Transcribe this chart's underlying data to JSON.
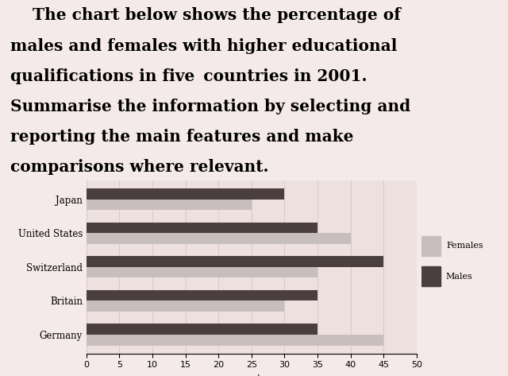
{
  "countries": [
    "Japan",
    "United States",
    "Switzerland",
    "Britain",
    "Germany"
  ],
  "females": [
    25,
    40,
    35,
    30,
    45
  ],
  "males": [
    30,
    35,
    45,
    35,
    35
  ],
  "female_color": "#c8bebe",
  "male_color": "#4a3e3e",
  "xlabel": "percentage",
  "xlim": [
    0,
    50
  ],
  "xticks": [
    0,
    5,
    10,
    15,
    20,
    25,
    30,
    35,
    40,
    45,
    50
  ],
  "bg_color": "#f5eaea",
  "chart_bg": "#efe0e0",
  "title_lines": [
    "    The chart below shows the percentage of",
    "males and females with higher educational",
    "qualifications in five  countries in 2001.",
    "Summarise the information by selecting and",
    "reporting the main features and make",
    "comparisons where relevant."
  ],
  "title_fontsize": 14.5,
  "bar_height": 0.32,
  "legend_labels": [
    "Females",
    "Males"
  ]
}
